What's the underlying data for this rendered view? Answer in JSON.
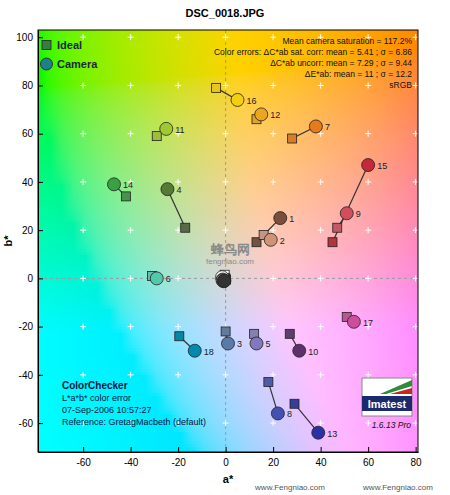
{
  "chart_data": {
    "type": "scatter",
    "title": "DSC_0018.JPG",
    "x_label": "a*",
    "y_label": "b*",
    "xlim": [
      -79,
      81
    ],
    "ylim": [
      -72,
      103
    ],
    "xticks": [
      -60,
      -40,
      -20,
      0,
      20,
      40,
      60,
      80
    ],
    "yticks": [
      -60,
      -40,
      -20,
      0,
      20,
      40,
      60,
      80,
      100
    ],
    "grid": true,
    "legend": "upper left",
    "labels": [
      "1",
      "2",
      "3",
      "4",
      "5",
      "6",
      "7",
      "8",
      "9",
      "10",
      "11",
      "12",
      "13",
      "14",
      "15",
      "16",
      "17",
      "18",
      null,
      null,
      null,
      null,
      null,
      null
    ],
    "series": [
      {
        "name": "Ideal",
        "marker": "square",
        "colors": [
          "#735244",
          "#c29682",
          "#627a9d",
          "#576c43",
          "#8580b1",
          "#67bdaa",
          "#d67e2c",
          "#505ba6",
          "#c15a63",
          "#5e3c6c",
          "#9dbc40",
          "#e0a32e",
          "#383d96",
          "#469449",
          "#af363c",
          "#e7c71f",
          "#bb5695",
          "#0885a1",
          "#f3f3f2",
          "#c8c8c8",
          "#a0a0a0",
          "#7a7a79",
          "#555555",
          "#343434"
        ],
        "x": [
          13,
          16,
          0,
          -17,
          12,
          -31,
          28,
          18,
          47,
          27,
          -29,
          13,
          29,
          -42,
          45,
          -4,
          51,
          -19.5,
          -0.4,
          -0.6,
          -0.1,
          -0.2,
          -0.3,
          0.2
        ],
        "values": [
          15,
          18,
          -22,
          21,
          -23,
          1,
          58,
          -43,
          21,
          -23,
          59,
          66,
          -52,
          34,
          15,
          79,
          -16,
          -24,
          1.5,
          0.1,
          0,
          -0.3,
          -0.5,
          -0.5
        ]
      },
      {
        "name": "Camera",
        "marker": "circle",
        "colors": [
          "#7a4e3c",
          "#cf9478",
          "#5a7aa8",
          "#557a36",
          "#8278bf",
          "#55c7ad",
          "#e87a1c",
          "#4450b4",
          "#d24e5c",
          "#5e306e",
          "#a0c832",
          "#eea51e",
          "#2c30a4",
          "#3aa044",
          "#c4283a",
          "#f2cf10",
          "#cc4c9e",
          "#008aac",
          "#f5f5f4",
          "#cacaca",
          "#a2a2a2",
          "#7b7b7a",
          "#565656",
          "#333333"
        ],
        "x": [
          23,
          19,
          1,
          -24.5,
          13,
          -29,
          38,
          22,
          51,
          31,
          -25,
          15,
          39,
          -47,
          60,
          5,
          54,
          -13,
          -1.5,
          -1.2,
          -1,
          -1.3,
          -0.8,
          -0.5
        ],
        "values": [
          25,
          16,
          -27,
          37,
          -27,
          0,
          63,
          -56,
          27,
          -30,
          62,
          68,
          -64,
          39,
          47,
          74,
          -18,
          -30,
          0.5,
          -0.5,
          -1,
          -0.8,
          -1.2,
          -1
        ]
      }
    ],
    "annotations": [
      "Mean camera saturation = 117.2%",
      "Color errors:  ΔC*ab sat. corr:  mean = 5.41 ; σ = 6.86",
      "ΔC*ab uncorr:  mean = 7.29 ; σ = 9.44",
      "ΔE*ab:  mean = 11 ; σ = 12.2",
      "sRGB"
    ],
    "caption": [
      "ColorChecker",
      "L*a*b* color error",
      "07-Sep-2006 10:57:27",
      "Reference: GretagMacbeth (default)"
    ],
    "logo": [
      "Imatest",
      "1.6.13 Pro"
    ],
    "watermark": [
      "蜂鸟网",
      "fengniao.com",
      "www.Fengniao.com",
      "www.Fengniao.com"
    ]
  }
}
